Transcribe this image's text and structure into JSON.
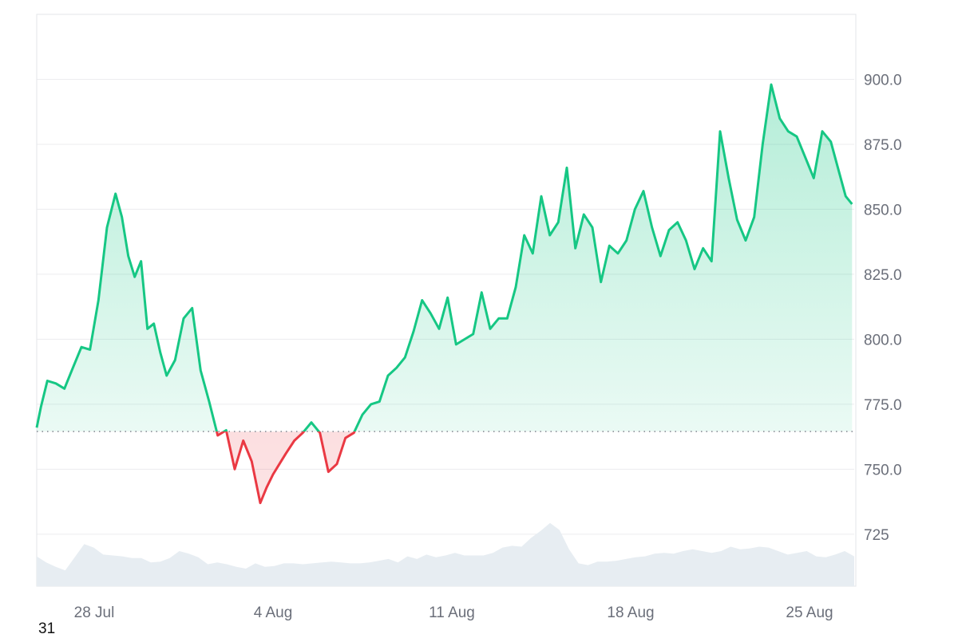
{
  "chart_data": {
    "type": "area",
    "baseline": 764.5,
    "ylim": [
      705,
      925
    ],
    "y_ticks": [
      "725",
      "750.0",
      "775.0",
      "800.0",
      "825.0",
      "850.0",
      "875.0",
      "900.0"
    ],
    "y_tick_values": [
      725,
      750,
      775,
      800,
      825,
      850,
      875,
      900
    ],
    "x_ticks": [
      "28 Jul",
      "4 Aug",
      "11 Aug",
      "18 Aug",
      "25 Aug"
    ],
    "x_tick_values": [
      "2024-07-28",
      "2024-08-04",
      "2024-08-11",
      "2024-08-18",
      "2024-08-25"
    ],
    "xlim": [
      "2024-07-25T18:00",
      "2024-08-26T18:00"
    ],
    "price": {
      "x": [
        "2024-07-25T18:00",
        "2024-07-25T22:00",
        "2024-07-26T04:00",
        "2024-07-26T12:00",
        "2024-07-26T20:00",
        "2024-07-27T04:00",
        "2024-07-27T12:00",
        "2024-07-27T20:00",
        "2024-07-28T04:00",
        "2024-07-28T12:00",
        "2024-07-28T20:00",
        "2024-07-29T02:00",
        "2024-07-29T08:00",
        "2024-07-29T14:00",
        "2024-07-29T20:00",
        "2024-07-30T02:00",
        "2024-07-30T08:00",
        "2024-07-30T14:00",
        "2024-07-30T20:00",
        "2024-07-31T04:00",
        "2024-07-31T12:00",
        "2024-07-31T20:00",
        "2024-08-01T04:00",
        "2024-08-01T12:00",
        "2024-08-01T20:00",
        "2024-08-02T04:00",
        "2024-08-02T12:00",
        "2024-08-02T20:00",
        "2024-08-03T04:00",
        "2024-08-03T12:00",
        "2024-08-03T18:00",
        "2024-08-04T00:00",
        "2024-08-04T06:00",
        "2024-08-04T12:00",
        "2024-08-04T20:00",
        "2024-08-05T04:00",
        "2024-08-05T12:00",
        "2024-08-05T20:00",
        "2024-08-06T04:00",
        "2024-08-06T12:00",
        "2024-08-06T20:00",
        "2024-08-07T04:00",
        "2024-08-07T12:00",
        "2024-08-07T20:00",
        "2024-08-08T04:00",
        "2024-08-08T12:00",
        "2024-08-08T20:00",
        "2024-08-09T04:00",
        "2024-08-09T12:00",
        "2024-08-09T20:00",
        "2024-08-10T04:00",
        "2024-08-10T12:00",
        "2024-08-10T20:00",
        "2024-08-11T04:00",
        "2024-08-11T12:00",
        "2024-08-11T20:00",
        "2024-08-12T04:00",
        "2024-08-12T12:00",
        "2024-08-12T20:00",
        "2024-08-13T04:00",
        "2024-08-13T12:00",
        "2024-08-13T20:00",
        "2024-08-14T04:00",
        "2024-08-14T12:00",
        "2024-08-14T20:00",
        "2024-08-15T04:00",
        "2024-08-15T12:00",
        "2024-08-15T20:00",
        "2024-08-16T04:00",
        "2024-08-16T12:00",
        "2024-08-16T20:00",
        "2024-08-17T04:00",
        "2024-08-17T12:00",
        "2024-08-17T20:00",
        "2024-08-18T04:00",
        "2024-08-18T12:00",
        "2024-08-18T20:00",
        "2024-08-19T04:00",
        "2024-08-19T12:00",
        "2024-08-19T20:00",
        "2024-08-20T04:00",
        "2024-08-20T12:00",
        "2024-08-20T20:00",
        "2024-08-21T04:00",
        "2024-08-21T12:00",
        "2024-08-21T20:00",
        "2024-08-22T04:00",
        "2024-08-22T12:00",
        "2024-08-22T20:00",
        "2024-08-23T04:00",
        "2024-08-23T12:00",
        "2024-08-23T20:00",
        "2024-08-24T04:00",
        "2024-08-24T12:00",
        "2024-08-24T20:00",
        "2024-08-25T04:00",
        "2024-08-25T12:00",
        "2024-08-25T20:00",
        "2024-08-26T04:00",
        "2024-08-26T10:00",
        "2024-08-26T16:00"
      ],
      "y": [
        766,
        774,
        784,
        783,
        781,
        789,
        797,
        796,
        815,
        843,
        856,
        847,
        832,
        824,
        830,
        804,
        806,
        795,
        786,
        792,
        808,
        812,
        788,
        776,
        763,
        765,
        750,
        761,
        753,
        737,
        743,
        748,
        752,
        756,
        761,
        764,
        768,
        764,
        749,
        752,
        762,
        764,
        771,
        775,
        776,
        786,
        789,
        793,
        803,
        815,
        810,
        804,
        816,
        798,
        800,
        802,
        818,
        804,
        808,
        808,
        820,
        840,
        833,
        855,
        840,
        845,
        866,
        835,
        848,
        843,
        822,
        836,
        833,
        838,
        850,
        857,
        843,
        832,
        842,
        845,
        838,
        827,
        835,
        830,
        880,
        862,
        846,
        838,
        847,
        875,
        898,
        885,
        880,
        878,
        870,
        862,
        880,
        876,
        864,
        855,
        852
      ]
    },
    "volume_relative": [
      0.34,
      0.27,
      0.22,
      0.18,
      0.33,
      0.48,
      0.44,
      0.36,
      0.35,
      0.34,
      0.32,
      0.32,
      0.27,
      0.28,
      0.32,
      0.4,
      0.37,
      0.33,
      0.25,
      0.27,
      0.25,
      0.22,
      0.2,
      0.26,
      0.22,
      0.23,
      0.26,
      0.26,
      0.25,
      0.26,
      0.27,
      0.28,
      0.27,
      0.26,
      0.26,
      0.27,
      0.29,
      0.31,
      0.27,
      0.34,
      0.31,
      0.36,
      0.33,
      0.35,
      0.38,
      0.35,
      0.35,
      0.35,
      0.38,
      0.44,
      0.46,
      0.45,
      0.55,
      0.63,
      0.72,
      0.64,
      0.42,
      0.26,
      0.24,
      0.28,
      0.28,
      0.29,
      0.31,
      0.33,
      0.34,
      0.37,
      0.38,
      0.37,
      0.4,
      0.42,
      0.4,
      0.38,
      0.4,
      0.45,
      0.42,
      0.43,
      0.45,
      0.44,
      0.4,
      0.36,
      0.38,
      0.4,
      0.34,
      0.33,
      0.36,
      0.4,
      0.34
    ]
  },
  "footnote": "31",
  "colors": {
    "up": "#16c784",
    "down": "#ea3943",
    "grid": "#ececef",
    "volume": "#e7edf2",
    "text": "#6b6f7a"
  }
}
